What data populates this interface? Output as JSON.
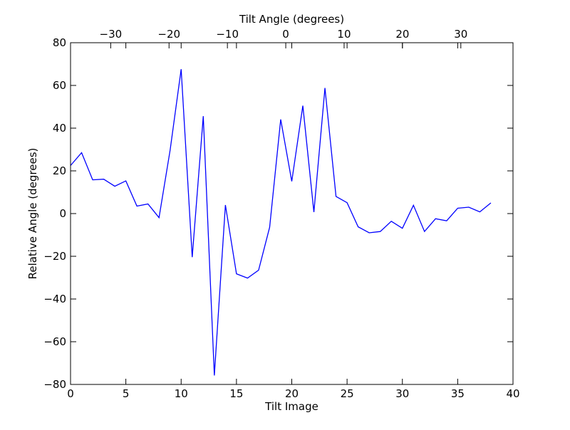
{
  "chart_data": {
    "type": "line",
    "title": "",
    "xlabel": "Tilt Image",
    "ylabel": "Relative Angle (degrees)",
    "top_xlabel": "Tilt Angle (degrees)",
    "xlim": [
      0,
      40
    ],
    "ylim": [
      -80,
      80
    ],
    "top_xlim": [
      -36.88,
      38.94
    ],
    "x_ticks": [
      0,
      5,
      10,
      15,
      20,
      25,
      30,
      35,
      40
    ],
    "x_tick_labels": [
      "0",
      "5",
      "10",
      "15",
      "20",
      "25",
      "30",
      "35",
      "40"
    ],
    "y_ticks": [
      -80,
      -60,
      -40,
      -20,
      0,
      20,
      40,
      60,
      80
    ],
    "y_tick_labels": [
      "−80",
      "−60",
      "−40",
      "−20",
      "0",
      "20",
      "40",
      "60",
      "80"
    ],
    "top_x_ticks": [
      -30,
      -20,
      -10,
      0,
      10,
      20,
      30
    ],
    "top_x_tick_labels": [
      "−30",
      "−20",
      "−10",
      "0",
      "10",
      "20",
      "30"
    ],
    "grid": false,
    "line_color": "#0000ff",
    "series": [
      {
        "x": [
          0,
          1,
          2,
          3,
          4,
          5,
          6,
          7,
          8,
          9,
          10,
          11,
          12,
          13,
          14,
          15,
          16,
          17,
          18,
          19,
          20,
          21,
          22,
          23,
          24,
          25,
          26,
          27,
          28,
          29,
          30,
          31,
          32,
          33,
          34,
          35,
          36,
          37,
          38
        ],
        "values": [
          22.5,
          28.5,
          15.8,
          16.1,
          12.8,
          15.3,
          3.5,
          4.5,
          -1.9,
          29.6,
          67.6,
          -20.4,
          45.6,
          -75.8,
          4.0,
          -28.2,
          -30.2,
          -26.5,
          -6.4,
          44.1,
          15.1,
          50.5,
          0.7,
          58.8,
          8.0,
          5.1,
          -6.2,
          -9.0,
          -8.4,
          -3.6,
          -6.9,
          3.9,
          -8.4,
          -2.4,
          -3.4,
          2.5,
          3.0,
          0.8,
          5.0
        ]
      }
    ]
  }
}
